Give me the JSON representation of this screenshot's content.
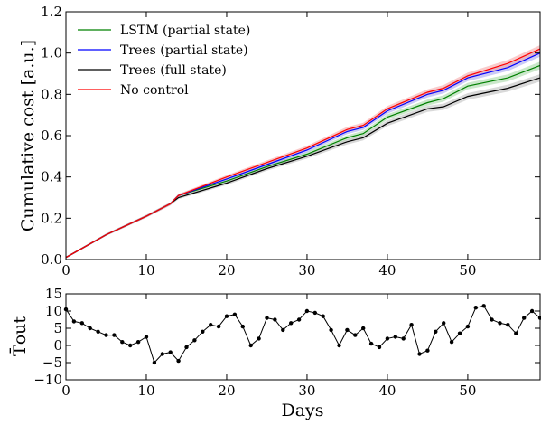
{
  "chart_data": [
    {
      "type": "line",
      "ylabel": "Cumulative cost [a.u.]",
      "xlabel": "",
      "xlim": [
        0,
        59
      ],
      "ylim": [
        0.0,
        1.2
      ],
      "x_ticks": [
        "0",
        "10",
        "20",
        "30",
        "40",
        "50"
      ],
      "y_ticks": [
        "0.0",
        "0.2",
        "0.4",
        "0.6",
        "0.8",
        "1.0",
        "1.2"
      ],
      "grid": false,
      "legend_position": "top-left",
      "series": [
        {
          "name": "LSTM (partial state)",
          "color": "#008000",
          "band_color": "#a8d8a8",
          "x": [
            0,
            5,
            10,
            13,
            14,
            20,
            25,
            30,
            35,
            37,
            40,
            45,
            47,
            50,
            55,
            59
          ],
          "values": [
            0.01,
            0.12,
            0.21,
            0.27,
            0.31,
            0.38,
            0.45,
            0.51,
            0.59,
            0.61,
            0.69,
            0.76,
            0.78,
            0.84,
            0.88,
            0.94
          ]
        },
        {
          "name": "Trees (partial state)",
          "color": "#0000ff",
          "band_color": "#a8a8f0",
          "x": [
            0,
            5,
            10,
            13,
            14,
            20,
            25,
            30,
            35,
            37,
            40,
            45,
            47,
            50,
            55,
            59
          ],
          "values": [
            0.01,
            0.12,
            0.21,
            0.27,
            0.31,
            0.39,
            0.46,
            0.53,
            0.62,
            0.64,
            0.72,
            0.8,
            0.82,
            0.88,
            0.93,
            1.0
          ]
        },
        {
          "name": "Trees (full state)",
          "color": "#000000",
          "band_color": "#c0c0c0",
          "x": [
            0,
            5,
            10,
            13,
            14,
            20,
            25,
            30,
            35,
            37,
            40,
            45,
            47,
            50,
            55,
            59
          ],
          "values": [
            0.01,
            0.12,
            0.21,
            0.27,
            0.3,
            0.37,
            0.44,
            0.5,
            0.57,
            0.59,
            0.66,
            0.73,
            0.74,
            0.79,
            0.83,
            0.88
          ]
        },
        {
          "name": "No control",
          "color": "#ff0000",
          "band_color": "#f5a8a8",
          "x": [
            0,
            5,
            10,
            13,
            14,
            20,
            25,
            30,
            35,
            37,
            40,
            45,
            47,
            50,
            55,
            59
          ],
          "values": [
            0.01,
            0.12,
            0.21,
            0.27,
            0.31,
            0.4,
            0.47,
            0.54,
            0.63,
            0.65,
            0.73,
            0.81,
            0.83,
            0.89,
            0.95,
            1.02
          ]
        }
      ]
    },
    {
      "type": "line",
      "ylabel": "T̄out",
      "xlabel": "Days",
      "xlim": [
        0,
        59
      ],
      "ylim": [
        -10,
        15
      ],
      "x_ticks": [
        "0",
        "10",
        "20",
        "30",
        "40",
        "50"
      ],
      "y_ticks": [
        "−10",
        "−5",
        "0",
        "5",
        "10",
        "15"
      ],
      "grid": false,
      "series": [
        {
          "name": "",
          "color": "#000000",
          "marker": "circle",
          "x": [
            0,
            1,
            2,
            3,
            4,
            5,
            6,
            7,
            8,
            9,
            10,
            11,
            12,
            13,
            14,
            15,
            16,
            17,
            18,
            19,
            20,
            21,
            22,
            23,
            24,
            25,
            26,
            27,
            28,
            29,
            30,
            31,
            32,
            33,
            34,
            35,
            36,
            37,
            38,
            39,
            40,
            41,
            42,
            43,
            44,
            45,
            46,
            47,
            48,
            49,
            50,
            51,
            52,
            53,
            54,
            55,
            56,
            57,
            58,
            59
          ],
          "values": [
            10.5,
            7,
            6.5,
            5,
            4,
            3,
            3,
            1,
            0,
            1,
            2.5,
            -5,
            -2.5,
            -2,
            -4.5,
            -0.5,
            1.5,
            4,
            6,
            5.5,
            8.5,
            9,
            5.5,
            0,
            2,
            8,
            7.5,
            4.5,
            6.5,
            7.5,
            10,
            9.5,
            8.5,
            4.5,
            0,
            4.5,
            3,
            5,
            0.5,
            -0.5,
            2,
            2.5,
            2,
            6,
            -2.5,
            -1.5,
            4,
            6.5,
            1,
            3.5,
            5.5,
            11,
            11.5,
            7.5,
            6.5,
            6,
            3.5,
            8,
            10,
            8
          ]
        }
      ]
    }
  ]
}
